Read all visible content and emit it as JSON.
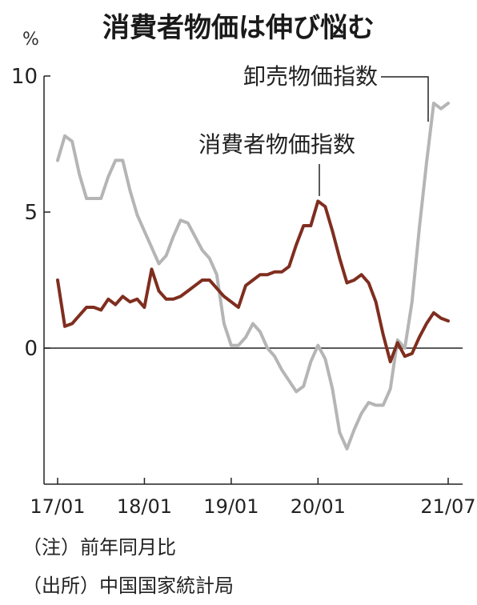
{
  "title": "消費者物価は伸び悩む",
  "notes": [
    "（注）前年同月比",
    "（出所）中国国家統計局"
  ],
  "colors": {
    "cpi": "#7f2e1f",
    "ppi": "#b5b5b5",
    "axis": "#222222"
  },
  "chart_data": {
    "type": "line",
    "title": "消費者物価は伸び悩む",
    "unit": "%",
    "ylim": [
      -5,
      10
    ],
    "yticks": [
      0,
      5,
      10
    ],
    "xlim": [
      0,
      55
    ],
    "xticks": [
      {
        "pos": 0,
        "label": "17/01"
      },
      {
        "pos": 12,
        "label": "18/01"
      },
      {
        "pos": 24,
        "label": "19/01"
      },
      {
        "pos": 36,
        "label": "20/01"
      },
      {
        "pos": 54,
        "label": "21/07"
      }
    ],
    "grid": false,
    "series": [
      {
        "name": "消費者物価指数",
        "key": "cpi",
        "values": [
          2.5,
          0.8,
          0.9,
          1.2,
          1.5,
          1.5,
          1.4,
          1.8,
          1.6,
          1.9,
          1.7,
          1.8,
          1.5,
          2.9,
          2.1,
          1.8,
          1.8,
          1.9,
          2.1,
          2.3,
          2.5,
          2.5,
          2.2,
          1.9,
          1.7,
          1.5,
          2.3,
          2.5,
          2.7,
          2.7,
          2.8,
          2.8,
          3.0,
          3.8,
          4.5,
          4.5,
          5.4,
          5.2,
          4.3,
          3.3,
          2.4,
          2.5,
          2.7,
          2.4,
          1.7,
          0.5,
          -0.5,
          0.2,
          -0.3,
          -0.2,
          0.4,
          0.9,
          1.3,
          1.1,
          1.0
        ]
      },
      {
        "name": "卸売物価指数",
        "key": "ppi",
        "values": [
          6.9,
          7.8,
          7.6,
          6.4,
          5.5,
          5.5,
          5.5,
          6.3,
          6.9,
          6.9,
          5.8,
          4.9,
          4.3,
          3.7,
          3.1,
          3.4,
          4.1,
          4.7,
          4.6,
          4.1,
          3.6,
          3.3,
          2.7,
          0.9,
          0.1,
          0.1,
          0.4,
          0.9,
          0.6,
          0.0,
          -0.3,
          -0.8,
          -1.2,
          -1.6,
          -1.4,
          -0.5,
          0.1,
          -0.4,
          -1.5,
          -3.1,
          -3.7,
          -3.0,
          -2.4,
          -2.0,
          -2.1,
          -2.1,
          -1.5,
          0.3,
          0.0,
          1.7,
          4.4,
          6.8,
          9.0,
          8.8,
          9.0
        ]
      }
    ]
  }
}
